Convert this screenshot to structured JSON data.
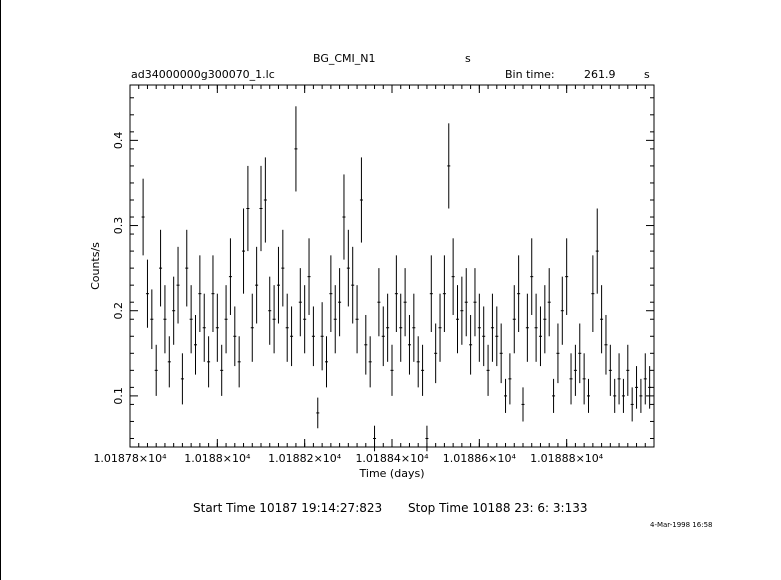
{
  "header": {
    "title": "BG_CMI_N1",
    "title_unit": "s",
    "filename": "ad34000000g300070_1.lc",
    "bin_time_label": "Bin time:",
    "bin_time_value": "261.9",
    "bin_time_unit": "s"
  },
  "footer": {
    "start_time": "Start Time 10187 19:14:27:823",
    "stop_time": "Stop Time 10188 23: 6: 3:133",
    "date_stamp": "4-Mar-1998 16:58"
  },
  "colors": {
    "ink": "#000000",
    "background": "#ffffff"
  },
  "chart_data": {
    "type": "scatter",
    "title": "BG_CMI_N1",
    "xlabel": "Time (days)",
    "ylabel": "Counts/s",
    "grid": false,
    "legend": "none",
    "xlim": [
      10187.8,
      10189.0
    ],
    "ylim": [
      0.04,
      0.465
    ],
    "x_tick_labels": [
      "1.01878×10⁴",
      "1.0188×10⁴",
      "1.01882×10⁴",
      "1.01884×10⁴",
      "1.01886×10⁴",
      "1.01888×10⁴"
    ],
    "x_ticks": [
      10187.8,
      10188.0,
      10188.2,
      10188.4,
      10188.6,
      10188.8
    ],
    "y_ticks": [
      0.1,
      0.2,
      0.3,
      0.4
    ],
    "y_tick_labels": [
      "0.1",
      "0.2",
      "0.3",
      "0.4"
    ],
    "series": [
      {
        "x": [
          10187.83,
          10187.84,
          10187.85,
          10187.86,
          10187.87,
          10187.88,
          10187.89,
          10187.9,
          10187.91,
          10187.92,
          10187.93,
          10187.94,
          10187.95,
          10187.96,
          10187.97,
          10187.98,
          10187.99,
          10188.0,
          10188.01,
          10188.02,
          10188.03,
          10188.04,
          10188.05,
          10188.06,
          10188.07,
          10188.08,
          10188.09,
          10188.1,
          10188.11,
          10188.12,
          10188.13,
          10188.14,
          10188.15,
          10188.16,
          10188.17,
          10188.18,
          10188.19,
          10188.2,
          10188.21,
          10188.22,
          10188.23,
          10188.24,
          10188.25,
          10188.26,
          10188.27,
          10188.28,
          10188.29,
          10188.3,
          10188.31,
          10188.32,
          10188.33,
          10188.34,
          10188.35,
          10188.36,
          10188.37,
          10188.38,
          10188.39,
          10188.4,
          10188.41,
          10188.42,
          10188.43,
          10188.44,
          10188.45,
          10188.46,
          10188.47,
          10188.48,
          10188.49,
          10188.5,
          10188.51,
          10188.52,
          10188.53,
          10188.54,
          10188.55,
          10188.56,
          10188.57,
          10188.58,
          10188.59,
          10188.6,
          10188.61,
          10188.62,
          10188.63,
          10188.64,
          10188.65,
          10188.66,
          10188.67,
          10188.68,
          10188.69,
          10188.7,
          10188.71,
          10188.72,
          10188.73,
          10188.74,
          10188.75,
          10188.76,
          10188.77,
          10188.78,
          10188.79,
          10188.8,
          10188.81,
          10188.82,
          10188.83,
          10188.84,
          10188.85,
          10188.86,
          10188.87,
          10188.88,
          10188.89,
          10188.9,
          10188.91,
          10188.92,
          10188.93,
          10188.94,
          10188.95,
          10188.96,
          10188.97,
          10188.98,
          10188.99
        ],
        "y": [
          0.31,
          0.22,
          0.19,
          0.13,
          0.25,
          0.19,
          0.14,
          0.2,
          0.23,
          0.12,
          0.25,
          0.19,
          0.16,
          0.22,
          0.18,
          0.14,
          0.22,
          0.18,
          0.13,
          0.19,
          0.24,
          0.17,
          0.14,
          0.27,
          0.32,
          0.18,
          0.23,
          0.32,
          0.33,
          0.2,
          0.19,
          0.23,
          0.25,
          0.18,
          0.17,
          0.39,
          0.21,
          0.19,
          0.24,
          0.17,
          0.08,
          0.17,
          0.14,
          0.22,
          0.19,
          0.21,
          0.31,
          0.25,
          0.23,
          0.19,
          0.33,
          0.16,
          0.14,
          0.05,
          0.21,
          0.17,
          0.18,
          0.13,
          0.22,
          0.18,
          0.21,
          0.16,
          0.18,
          0.14,
          0.13,
          0.05,
          0.22,
          0.15,
          0.18,
          0.22,
          0.37,
          0.24,
          0.19,
          0.2,
          0.21,
          0.16,
          0.21,
          0.18,
          0.17,
          0.13,
          0.18,
          0.17,
          0.15,
          0.1,
          0.12,
          0.19,
          0.22,
          0.09,
          0.18,
          0.24,
          0.18,
          0.17,
          0.19,
          0.21,
          0.1,
          0.15,
          0.2,
          0.24,
          0.12,
          0.13,
          0.15,
          0.12,
          0.1,
          0.22,
          0.27,
          0.19,
          0.16,
          0.13,
          0.1,
          0.12,
          0.1,
          0.13,
          0.09,
          0.11,
          0.1,
          0.12,
          0.11
        ],
        "y_err": [
          0.045,
          0.04,
          0.035,
          0.03,
          0.045,
          0.04,
          0.03,
          0.04,
          0.045,
          0.03,
          0.045,
          0.04,
          0.035,
          0.045,
          0.04,
          0.03,
          0.045,
          0.04,
          0.03,
          0.04,
          0.045,
          0.035,
          0.03,
          0.05,
          0.05,
          0.04,
          0.045,
          0.05,
          0.05,
          0.04,
          0.04,
          0.045,
          0.045,
          0.04,
          0.035,
          0.05,
          0.04,
          0.04,
          0.045,
          0.035,
          0.018,
          0.04,
          0.03,
          0.045,
          0.04,
          0.04,
          0.05,
          0.045,
          0.045,
          0.04,
          0.05,
          0.035,
          0.03,
          0.015,
          0.04,
          0.035,
          0.04,
          0.03,
          0.045,
          0.04,
          0.04,
          0.035,
          0.04,
          0.03,
          0.03,
          0.015,
          0.045,
          0.035,
          0.04,
          0.045,
          0.05,
          0.045,
          0.04,
          0.04,
          0.04,
          0.035,
          0.04,
          0.04,
          0.035,
          0.03,
          0.04,
          0.035,
          0.035,
          0.02,
          0.03,
          0.04,
          0.045,
          0.02,
          0.04,
          0.045,
          0.04,
          0.035,
          0.04,
          0.04,
          0.02,
          0.035,
          0.04,
          0.045,
          0.03,
          0.03,
          0.035,
          0.03,
          0.02,
          0.045,
          0.05,
          0.04,
          0.035,
          0.03,
          0.02,
          0.03,
          0.02,
          0.03,
          0.02,
          0.025,
          0.02,
          0.03,
          0.025
        ]
      }
    ]
  }
}
